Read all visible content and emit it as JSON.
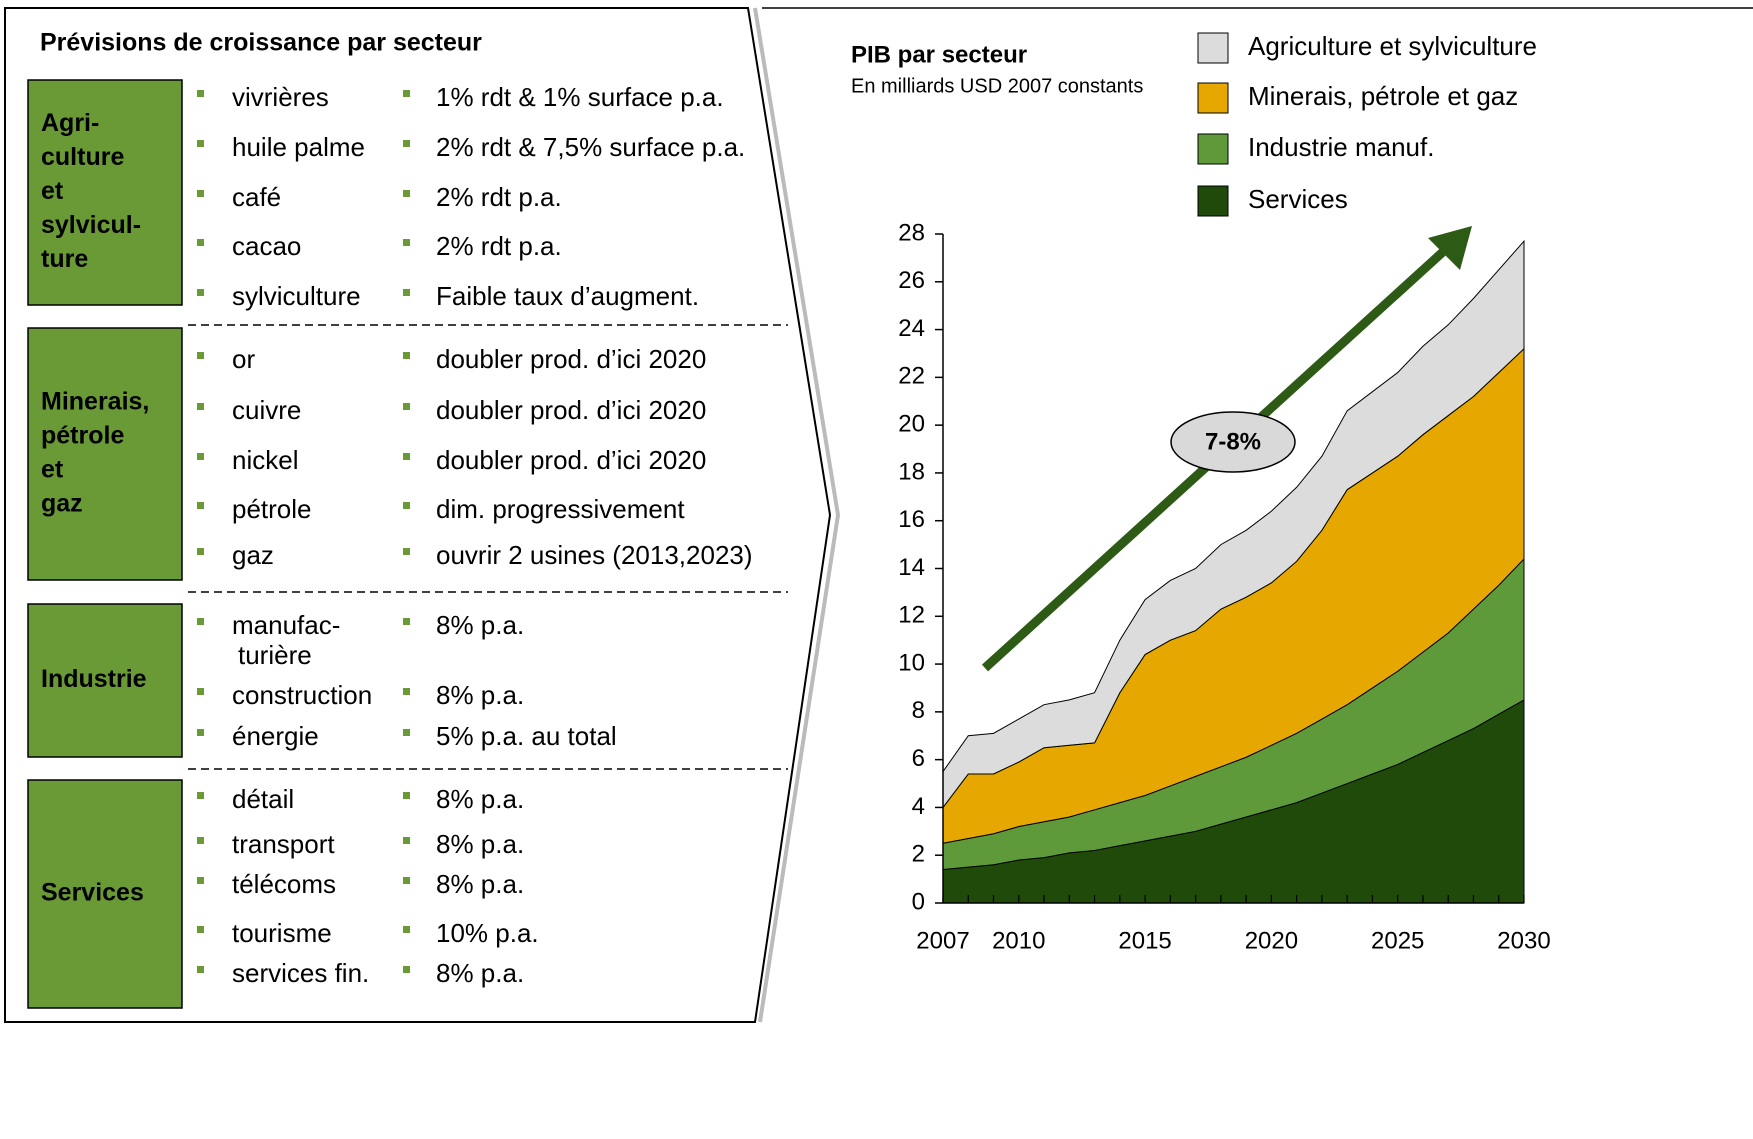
{
  "panel": {
    "title": "Prévisions de croissance par secteur",
    "sections": [
      {
        "label": [
          "Agri-",
          "culture",
          "et",
          "sylvicul-",
          "ture"
        ],
        "rows": [
          {
            "item": "vivrières",
            "projection": "1% rdt & 1% surface p.a."
          },
          {
            "item": "huile palme",
            "projection": "2% rdt & 7,5% surface p.a."
          },
          {
            "item": "café",
            "projection": "2% rdt p.a."
          },
          {
            "item": "cacao",
            "projection": "2% rdt p.a."
          },
          {
            "item": "sylviculture",
            "projection": "Faible taux d’augment."
          }
        ]
      },
      {
        "label": [
          "Minerais,",
          "pétrole",
          "et",
          "gaz"
        ],
        "rows": [
          {
            "item": "or",
            "projection": "doubler prod. d’ici 2020"
          },
          {
            "item": "cuivre",
            "projection": "doubler prod. d’ici 2020"
          },
          {
            "item": "nickel",
            "projection": "doubler prod. d’ici 2020"
          },
          {
            "item": "pétrole",
            "projection": "dim. progressivement"
          },
          {
            "item": "gaz",
            "projection": "ouvrir 2 usines (2013,2023)"
          }
        ]
      },
      {
        "label": [
          "Industrie"
        ],
        "rows": [
          {
            "item": [
              "manufac-",
              "turière"
            ],
            "projection": "8% p.a."
          },
          {
            "item": "construction",
            "projection": "8% p.a."
          },
          {
            "item": "énergie",
            "projection": "5% p.a. au total"
          }
        ]
      },
      {
        "label": [
          "Services"
        ],
        "rows": [
          {
            "item": "détail",
            "projection": "8% p.a."
          },
          {
            "item": "transport",
            "projection": "8% p.a."
          },
          {
            "item": "télécoms",
            "projection": "8% p.a."
          },
          {
            "item": "tourisme",
            "projection": "10% p.a."
          },
          {
            "item": "services fin.",
            "projection": "8% p.a."
          }
        ]
      }
    ]
  },
  "chart_data": {
    "type": "stacked_area",
    "title": "PIB par secteur",
    "subtitle": "En milliards USD 2007 constants",
    "annotation": "7-8%",
    "x": [
      2007,
      2008,
      2009,
      2010,
      2011,
      2012,
      2013,
      2014,
      2015,
      2016,
      2017,
      2018,
      2019,
      2020,
      2021,
      2022,
      2023,
      2024,
      2025,
      2026,
      2027,
      2028,
      2029,
      2030
    ],
    "series": [
      {
        "name": "Services",
        "color": "#1f4a0a",
        "values": [
          1.4,
          1.5,
          1.6,
          1.8,
          1.9,
          2.1,
          2.2,
          2.4,
          2.6,
          2.8,
          3.0,
          3.3,
          3.6,
          3.9,
          4.2,
          4.6,
          5.0,
          5.4,
          5.8,
          6.3,
          6.8,
          7.3,
          7.9,
          8.5
        ]
      },
      {
        "name": "Industrie manuf.",
        "color": "#5e9a3a",
        "values": [
          1.1,
          1.2,
          1.3,
          1.4,
          1.5,
          1.5,
          1.7,
          1.8,
          1.9,
          2.1,
          2.3,
          2.4,
          2.5,
          2.7,
          2.9,
          3.1,
          3.3,
          3.6,
          3.9,
          4.2,
          4.5,
          5.0,
          5.4,
          5.9
        ]
      },
      {
        "name": "Minerais, pétrole et gaz",
        "color": "#e6a800",
        "values": [
          1.5,
          2.7,
          2.5,
          2.7,
          3.1,
          3.0,
          2.8,
          4.6,
          5.9,
          6.1,
          6.1,
          6.6,
          6.7,
          6.8,
          7.2,
          7.9,
          9.0,
          9.0,
          9.0,
          9.1,
          9.1,
          8.9,
          8.9,
          8.8
        ]
      },
      {
        "name": "Agriculture et sylviculture",
        "color": "#dcdcdc",
        "values": [
          1.5,
          1.6,
          1.7,
          1.8,
          1.8,
          1.9,
          2.1,
          2.2,
          2.3,
          2.5,
          2.6,
          2.7,
          2.8,
          3.0,
          3.1,
          3.1,
          3.3,
          3.4,
          3.5,
          3.7,
          3.8,
          4.1,
          4.3,
          4.5
        ]
      }
    ],
    "xlim": [
      2007,
      2030
    ],
    "xticks": [
      2007,
      2010,
      2015,
      2020,
      2025,
      2030
    ],
    "ylim": [
      0,
      28
    ],
    "yticks": [
      0,
      2,
      4,
      6,
      8,
      10,
      12,
      14,
      16,
      18,
      20,
      22,
      24,
      26,
      28
    ]
  }
}
